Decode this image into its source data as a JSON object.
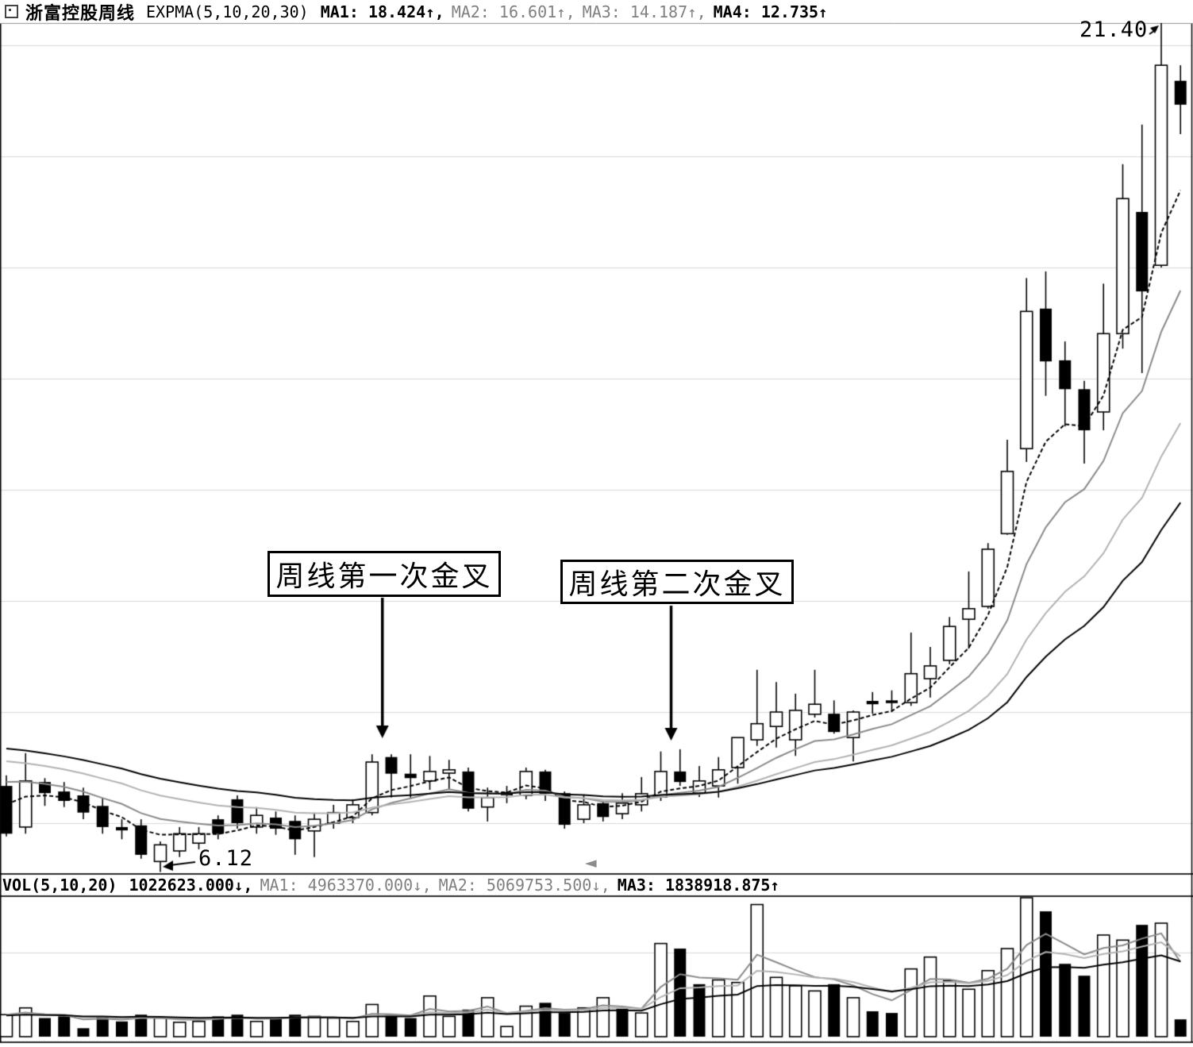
{
  "window": {
    "title": "浙富控股周线"
  },
  "header": {
    "indicator": "EXPMA(5,10,20,30)",
    "mas": [
      {
        "label": "MA1:",
        "value": "18.424",
        "arrow": "↑",
        "sep": ",",
        "color": "#000000"
      },
      {
        "label": "MA2:",
        "value": "16.601",
        "arrow": "↑",
        "sep": ",",
        "color": "#808080"
      },
      {
        "label": "MA3:",
        "value": "14.187",
        "arrow": "↑",
        "sep": ",",
        "color": "#808080"
      },
      {
        "label": "MA4:",
        "value": "12.735",
        "arrow": "↑",
        "sep": "",
        "color": "#000000"
      }
    ]
  },
  "volume_header": {
    "indicator": "VOL(5,10,20)",
    "value": "1022623.000",
    "value_arrow": "↓",
    "value_sep": ",",
    "mas": [
      {
        "label": "MA1:",
        "value": "4963370.000",
        "arrow": "↓",
        "sep": ",",
        "color": "#808080"
      },
      {
        "label": "MA2:",
        "value": "5069753.500",
        "arrow": "↓",
        "sep": ",",
        "color": "#808080"
      },
      {
        "label": "MA3:",
        "value": "1838918.875",
        "arrow": "↑",
        "sep": "",
        "color": "#000000"
      }
    ]
  },
  "annotations": {
    "first_cross_label": "周线第一次金叉",
    "second_cross_label": "周线第二次金叉",
    "high_label": "21.40",
    "low_label": "6.12",
    "scroll_marker": "◄"
  },
  "chart_data": {
    "type": "candlestick",
    "title": "浙富控股 周线 (weekly K-line with EXPMA 5/10/20/30 and VOL 5/10/20)",
    "y_axis": {
      "visible": false,
      "approx_range": [
        6.0,
        21.8
      ],
      "gridline_prices": [
        7,
        9,
        11,
        13,
        15,
        17,
        19,
        21
      ],
      "grid_on": true
    },
    "marked_high": 21.4,
    "marked_low": 6.12,
    "ema_periods": [
      5,
      10,
      20,
      30
    ],
    "ema_seeds": [
      7.6,
      7.95,
      8.25,
      8.45
    ],
    "ema_colors": [
      "#000000",
      "#8a8a8a",
      "#b2b2b2",
      "#000000"
    ],
    "vol_ma_periods": [
      5,
      10,
      20
    ],
    "vol_ma_seeds": [
      1300000,
      1300000,
      1250000
    ],
    "vol_ma_colors": [
      "#8a8a8a",
      "#b2b2b2",
      "#000000"
    ],
    "golden_crosses": [
      {
        "label": "周线第一次金叉",
        "candle_index": 19
      },
      {
        "label": "周线第二次金叉",
        "candle_index": 34
      }
    ],
    "high_annotation": {
      "text": "21.40",
      "candle_index": 60
    },
    "low_annotation": {
      "text": "6.12",
      "candle_index": 8
    },
    "candles_format": [
      "open",
      "high",
      "low",
      "close",
      "fill(b=black,w=white)",
      "volume",
      "volume_fill"
    ],
    "candles": [
      [
        7.67,
        7.86,
        6.76,
        6.81,
        "b",
        1300000,
        "w"
      ],
      [
        6.93,
        8.26,
        6.81,
        7.76,
        "w",
        1700000,
        "w"
      ],
      [
        7.74,
        7.81,
        7.31,
        7.54,
        "b",
        1100000,
        "b"
      ],
      [
        7.57,
        7.74,
        7.29,
        7.4,
        "b",
        1200000,
        "b"
      ],
      [
        7.5,
        7.64,
        7.07,
        7.19,
        "b",
        500000,
        "b"
      ],
      [
        7.31,
        7.46,
        6.81,
        6.93,
        "b",
        1150000,
        "b"
      ],
      [
        6.93,
        7.07,
        6.71,
        6.87,
        "b",
        900000,
        "b"
      ],
      [
        6.96,
        7.07,
        6.36,
        6.43,
        "b",
        1300000,
        "b"
      ],
      [
        6.31,
        6.67,
        6.12,
        6.61,
        "w",
        1100000,
        "w"
      ],
      [
        6.5,
        6.93,
        6.39,
        6.81,
        "w",
        850000,
        "w"
      ],
      [
        6.64,
        6.93,
        6.53,
        6.81,
        "w",
        900000,
        "w"
      ],
      [
        7.07,
        7.14,
        6.71,
        6.81,
        "b",
        1200000,
        "b"
      ],
      [
        7.43,
        7.5,
        6.9,
        7.0,
        "b",
        1300000,
        "b"
      ],
      [
        6.93,
        7.29,
        6.81,
        7.14,
        "w",
        900000,
        "w"
      ],
      [
        7.1,
        7.21,
        6.79,
        6.9,
        "b",
        1100000,
        "b"
      ],
      [
        7.04,
        7.14,
        6.43,
        6.71,
        "b",
        1300000,
        "b"
      ],
      [
        6.86,
        7.19,
        6.39,
        7.07,
        "w",
        1200000,
        "w"
      ],
      [
        7.0,
        7.33,
        6.9,
        7.19,
        "w",
        1100000,
        "w"
      ],
      [
        7.1,
        7.43,
        7.0,
        7.33,
        "w",
        900000,
        "w"
      ],
      [
        7.19,
        8.24,
        7.14,
        8.1,
        "w",
        1900000,
        "w"
      ],
      [
        8.19,
        8.24,
        7.46,
        7.89,
        "b",
        1300000,
        "b"
      ],
      [
        7.89,
        8.24,
        7.46,
        7.81,
        "b",
        1100000,
        "b"
      ],
      [
        7.76,
        8.21,
        7.6,
        7.93,
        "w",
        2400000,
        "w"
      ],
      [
        7.9,
        8.14,
        7.61,
        7.96,
        "w",
        1200000,
        "w"
      ],
      [
        7.93,
        8.0,
        7.21,
        7.26,
        "b",
        1600000,
        "b"
      ],
      [
        7.29,
        7.64,
        7.03,
        7.46,
        "w",
        2300000,
        "w"
      ],
      [
        7.56,
        7.67,
        7.36,
        7.5,
        "b",
        600000,
        "w"
      ],
      [
        7.5,
        8.0,
        7.43,
        7.93,
        "w",
        1800000,
        "w"
      ],
      [
        7.93,
        7.96,
        7.4,
        7.53,
        "b",
        2000000,
        "b"
      ],
      [
        7.54,
        7.57,
        6.9,
        6.97,
        "b",
        1400000,
        "b"
      ],
      [
        7.07,
        7.5,
        7.0,
        7.33,
        "w",
        1700000,
        "w"
      ],
      [
        7.36,
        7.39,
        7.03,
        7.11,
        "b",
        2300000,
        "w"
      ],
      [
        7.17,
        7.54,
        7.07,
        7.36,
        "w",
        1650000,
        "b"
      ],
      [
        7.33,
        7.83,
        7.21,
        7.53,
        "w",
        1400000,
        "w"
      ],
      [
        7.47,
        8.29,
        7.4,
        7.93,
        "w",
        5500000,
        "w"
      ],
      [
        7.93,
        8.33,
        7.67,
        7.74,
        "b",
        5200000,
        "b"
      ],
      [
        7.54,
        8.03,
        7.47,
        7.76,
        "w",
        3100000,
        "b"
      ],
      [
        7.67,
        8.19,
        7.46,
        7.96,
        "w",
        3350000,
        "w"
      ],
      [
        8.0,
        8.54,
        7.71,
        8.54,
        "w",
        3200000,
        "w"
      ],
      [
        8.5,
        9.76,
        8.39,
        8.79,
        "w",
        7800000,
        "w"
      ],
      [
        8.74,
        9.54,
        8.36,
        9.0,
        "w",
        3500000,
        "w"
      ],
      [
        8.5,
        9.33,
        8.21,
        9.03,
        "w",
        3000000,
        "w"
      ],
      [
        8.96,
        9.76,
        8.9,
        9.14,
        "w",
        2700000,
        "w"
      ],
      [
        8.97,
        9.21,
        8.61,
        8.64,
        "b",
        3100000,
        "b"
      ],
      [
        8.54,
        9.03,
        8.11,
        9.0,
        "w",
        2300000,
        "w"
      ],
      [
        9.2,
        9.36,
        8.97,
        9.14,
        "b",
        1500000,
        "b"
      ],
      [
        9.21,
        9.39,
        9.0,
        9.16,
        "b",
        1400000,
        "b"
      ],
      [
        9.17,
        10.43,
        9.11,
        9.69,
        "w",
        4000000,
        "w"
      ],
      [
        9.6,
        10.17,
        9.26,
        9.83,
        "w",
        4700000,
        "w"
      ],
      [
        9.93,
        10.71,
        9.86,
        10.54,
        "w",
        3300000,
        "w"
      ],
      [
        10.67,
        11.53,
        10.14,
        10.86,
        "w",
        2800000,
        "w"
      ],
      [
        10.9,
        12.04,
        10.86,
        11.93,
        "w",
        3900000,
        "w"
      ],
      [
        12.21,
        13.9,
        12.19,
        13.33,
        "w",
        5200000,
        "w"
      ],
      [
        13.74,
        16.81,
        13.5,
        16.21,
        "w",
        8200000,
        "w"
      ],
      [
        16.26,
        16.93,
        14.69,
        15.31,
        "b",
        7400000,
        "b"
      ],
      [
        15.33,
        15.67,
        14.14,
        14.81,
        "b",
        4300000,
        "b"
      ],
      [
        14.81,
        14.96,
        13.47,
        14.07,
        "b",
        3600000,
        "b"
      ],
      [
        14.4,
        16.71,
        14.07,
        15.81,
        "w",
        6000000,
        "w"
      ],
      [
        15.81,
        18.86,
        15.54,
        18.24,
        "w",
        5700000,
        "w"
      ],
      [
        18.0,
        19.57,
        15.1,
        16.57,
        "b",
        6600000,
        "b"
      ],
      [
        17.04,
        21.4,
        17.0,
        20.64,
        "w",
        6700000,
        "w"
      ],
      [
        20.36,
        20.64,
        19.4,
        19.93,
        "b",
        1022623,
        "b"
      ]
    ]
  }
}
